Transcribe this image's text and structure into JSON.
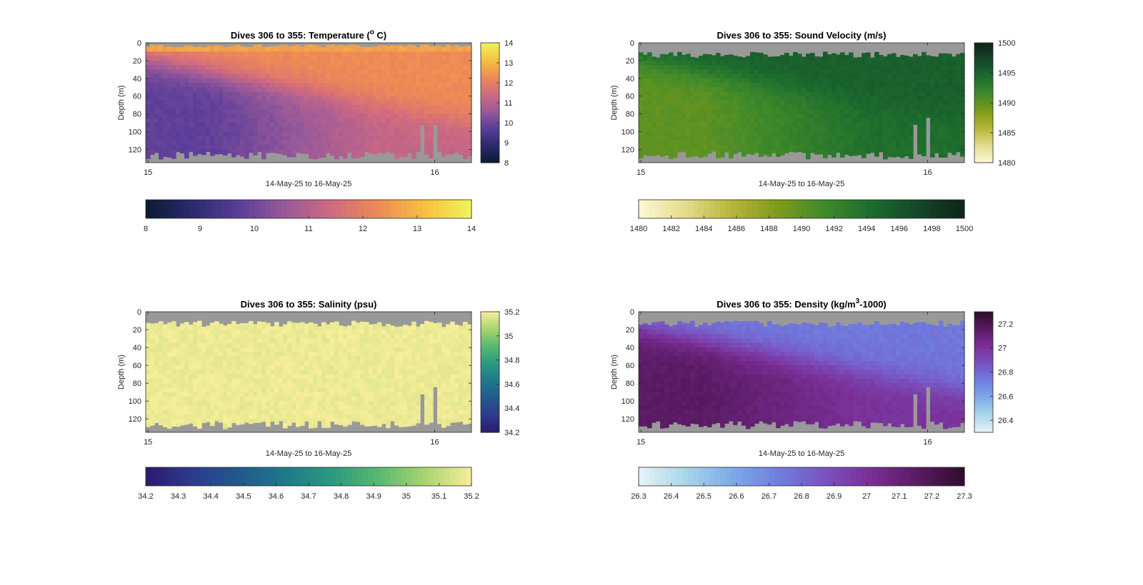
{
  "chart_data": [
    {
      "type": "heatmap",
      "title": "Dives 306 to 355: Temperature",
      "title_unit_before": "(",
      "title_unit_sup": "o",
      "title_unit_after": " C)",
      "ylabel": "Depth (m)",
      "xlabel": "14-May-25 to 16-May-25",
      "x_ticks": [
        "15",
        "16"
      ],
      "y_ticks": [
        "0",
        "20",
        "40",
        "60",
        "80",
        "100",
        "120"
      ],
      "ylim": [
        0,
        135
      ],
      "y_reversed": true,
      "colorbar": {
        "min": 8,
        "max": 14,
        "ticks": [
          "8",
          "9",
          "10",
          "11",
          "12",
          "13",
          "14"
        ]
      },
      "horizontal_colorbar": {
        "min": 8,
        "max": 14,
        "ticks": [
          "8",
          "9",
          "10",
          "11",
          "12",
          "13",
          "14"
        ]
      },
      "colormap": [
        "#0c1a33",
        "#2a2a6e",
        "#5a3d9a",
        "#9a5a9a",
        "#d06a80",
        "#ee8a55",
        "#f7c040",
        "#eef55a"
      ],
      "profile": {
        "surface": 12.3,
        "deep": 9.8,
        "deep_late": 11.2
      },
      "colormap_name": "thermal"
    },
    {
      "type": "heatmap",
      "title": "Dives 306 to 355: Sound Velocity (m/s)",
      "ylabel": "Depth (m)",
      "xlabel": "14-May-25 to 16-May-25",
      "x_ticks": [
        "15",
        "16"
      ],
      "y_ticks": [
        "0",
        "20",
        "40",
        "60",
        "80",
        "100",
        "120"
      ],
      "ylim": [
        0,
        135
      ],
      "y_reversed": true,
      "colorbar": {
        "min": 1480,
        "max": 1500,
        "ticks": [
          "1480",
          "1485",
          "1490",
          "1495",
          "1500"
        ]
      },
      "horizontal_colorbar": {
        "min": 1480,
        "max": 1500,
        "ticks": [
          "1480",
          "1482",
          "1484",
          "1486",
          "1488",
          "1490",
          "1492",
          "1494",
          "1496",
          "1498",
          "1500"
        ]
      },
      "colormap": [
        "#fdf7d8",
        "#e3dc8c",
        "#b7b538",
        "#7e9a1a",
        "#3f8a2a",
        "#1c6c2e",
        "#15462a",
        "#102316"
      ],
      "profile": {
        "surface": 1495.2,
        "deep": 1490.0,
        "deep_late": 1494.0
      },
      "colormap_name": "speed"
    },
    {
      "type": "heatmap",
      "title": "Dives 306 to 355: Salinity (psu)",
      "ylabel": "Depth (m)",
      "xlabel": "14-May-25 to 16-May-25",
      "x_ticks": [
        "15",
        "16"
      ],
      "y_ticks": [
        "0",
        "20",
        "40",
        "60",
        "80",
        "100",
        "120"
      ],
      "ylim": [
        0,
        135
      ],
      "y_reversed": true,
      "colorbar": {
        "min": 34.2,
        "max": 35.2,
        "ticks": [
          "34.2",
          "34.4",
          "34.6",
          "34.8",
          "35",
          "35.2"
        ]
      },
      "horizontal_colorbar": {
        "min": 34.2,
        "max": 35.2,
        "ticks": [
          "34.2",
          "34.3",
          "34.4",
          "34.5",
          "34.6",
          "34.7",
          "34.8",
          "34.9",
          "35",
          "35.1",
          "35.2"
        ]
      },
      "colormap": [
        "#2a1a6e",
        "#2d3a8e",
        "#22598c",
        "#1e7a8a",
        "#2a9a80",
        "#58b870",
        "#a8d470",
        "#f8ee9a"
      ],
      "profile": {
        "surface": 35.18,
        "deep": 35.18,
        "deep_late": 35.18
      },
      "colormap_name": "haline"
    },
    {
      "type": "heatmap",
      "title": "Dives 306 to 355: Density",
      "title_unit_before": "(kg/m",
      "title_unit_sup": "3",
      "title_unit_after": "-1000)",
      "ylabel": "Depth (m)",
      "xlabel": "14-May-25 to 16-May-25",
      "x_ticks": [
        "15",
        "16"
      ],
      "y_ticks": [
        "0",
        "20",
        "40",
        "60",
        "80",
        "100",
        "120"
      ],
      "ylim": [
        0,
        135
      ],
      "y_reversed": true,
      "colorbar": {
        "min": 26.3,
        "max": 27.3,
        "ticks": [
          "26.4",
          "26.6",
          "26.8",
          "27",
          "27.2"
        ]
      },
      "horizontal_colorbar": {
        "min": 26.3,
        "max": 27.3,
        "ticks": [
          "26.3",
          "26.4",
          "26.5",
          "26.6",
          "26.7",
          "26.8",
          "26.9",
          "27",
          "27.1",
          "27.2",
          "27.3"
        ]
      },
      "colormap": [
        "#e6f3f6",
        "#a9d6ea",
        "#7eaae8",
        "#6f7ee0",
        "#7a52c0",
        "#7a2f96",
        "#5a1a62",
        "#2e0d2c"
      ],
      "profile": {
        "surface": 26.75,
        "deep": 27.15,
        "deep_late": 27.0
      },
      "colormap_name": "dense"
    }
  ],
  "colors": {
    "no_data": "#999999",
    "axis": "#262626",
    "background": "#ffffff"
  }
}
